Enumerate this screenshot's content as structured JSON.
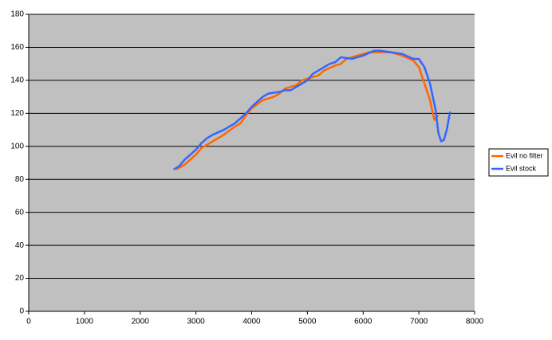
{
  "chart_data": {
    "type": "line",
    "xlim": [
      0,
      8000
    ],
    "xticks": [
      0,
      1000,
      2000,
      3000,
      4000,
      5000,
      6000,
      7000,
      8000
    ],
    "ylim": [
      0,
      180
    ],
    "yticks": [
      0,
      20,
      40,
      60,
      80,
      100,
      120,
      140,
      160,
      180
    ],
    "grid": true,
    "legend": "right",
    "series": [
      {
        "name": "Evil no filter",
        "color": "#ff6600",
        "x": [
          2650,
          2800,
          3000,
          3100,
          3300,
          3500,
          3700,
          3800,
          3900,
          4000,
          4200,
          4400,
          4500,
          4600,
          4800,
          4900,
          5000,
          5200,
          5300,
          5500,
          5600,
          5700,
          5900,
          6100,
          6300,
          6500,
          6700,
          6900,
          7000,
          7100,
          7200,
          7250,
          7280,
          7350
        ],
        "values": [
          86,
          89,
          95,
          99,
          103,
          107,
          112,
          114,
          119,
          123,
          128,
          130,
          132,
          135,
          137,
          140,
          141,
          143,
          146,
          149,
          150,
          153,
          155,
          157,
          157,
          157,
          155,
          152,
          148,
          138,
          128,
          120,
          116,
          119
        ]
      },
      {
        "name": "Evil stock",
        "color": "#3366ff",
        "x": [
          2600,
          2700,
          2800,
          2900,
          3000,
          3100,
          3200,
          3300,
          3500,
          3700,
          3900,
          4000,
          4200,
          4300,
          4500,
          4600,
          4700,
          4800,
          5000,
          5100,
          5200,
          5300,
          5400,
          5500,
          5600,
          5800,
          6000,
          6200,
          6300,
          6500,
          6700,
          6900,
          7000,
          7100,
          7200,
          7300,
          7350,
          7400,
          7450,
          7500,
          7560
        ],
        "values": [
          86,
          88,
          92,
          95,
          98,
          102,
          105,
          107,
          110,
          114,
          120,
          124,
          130,
          132,
          133,
          134,
          134,
          136,
          140,
          144,
          146,
          148,
          150,
          151,
          154,
          153,
          155,
          158,
          158,
          157,
          156,
          153,
          153,
          148,
          138,
          122,
          108,
          103,
          104,
          110,
          121
        ]
      }
    ]
  }
}
